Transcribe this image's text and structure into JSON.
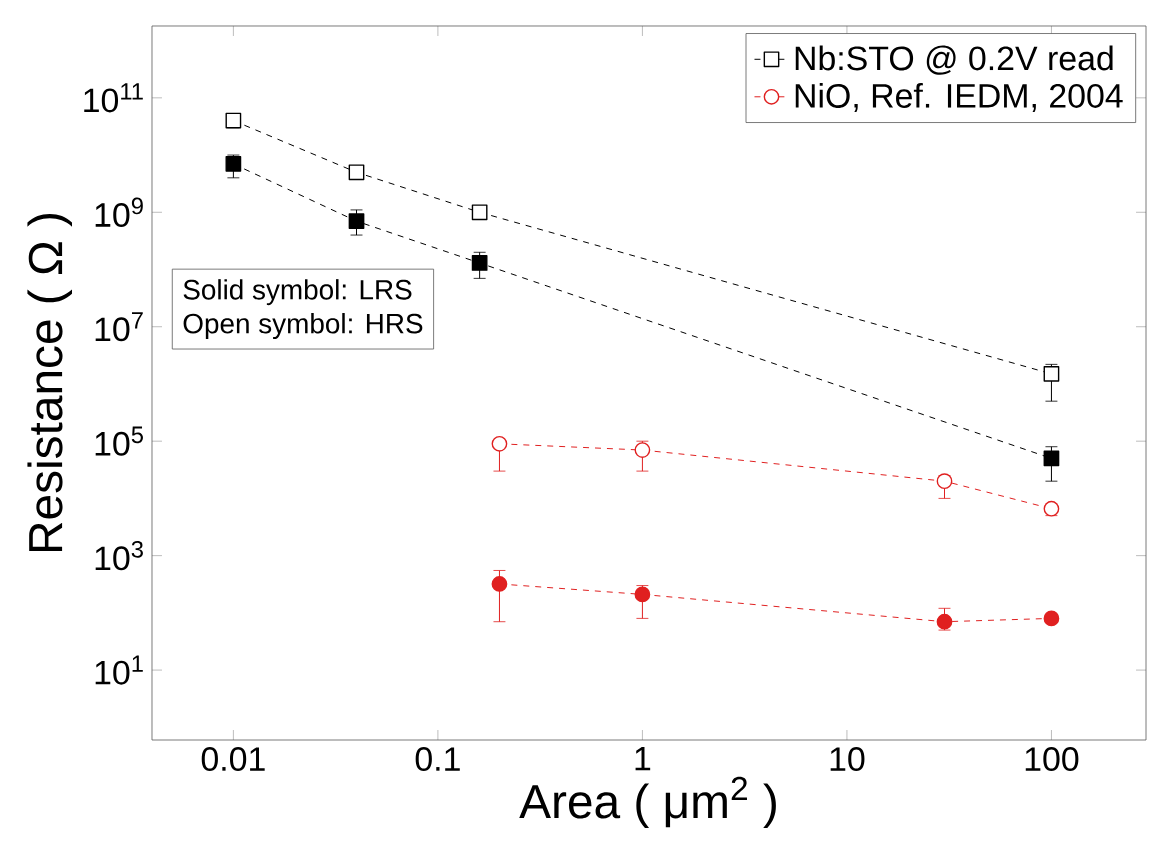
{
  "chart_data": {
    "type": "line",
    "xlabel": "Area ( μm$^{2}$ )",
    "ylabel": "Resistance ( Ω )",
    "log": "xy",
    "xlim": [
      0.004,
      290
    ],
    "ylim": [
      0.6,
      1800000000000.0
    ],
    "xticks": [
      0.01,
      0.1,
      1,
      10,
      100
    ],
    "yticks": [
      {
        "value": 10,
        "label": "10$^{1}$"
      },
      {
        "value": 1000,
        "label": "10$^{3}$"
      },
      {
        "value": 100000,
        "label": "10$^{5}$"
      },
      {
        "value": 10000000,
        "label": "10$^{7}$"
      },
      {
        "value": 1000000000,
        "label": "10$^{9}$"
      },
      {
        "value": 100000000000,
        "label": "10$^{11}$"
      }
    ],
    "grid": false,
    "legend": "top right",
    "line_style": "dashed",
    "annotations": [
      "Solid symbol: LRS",
      "Open symbol: HRS"
    ],
    "series": [
      {
        "name": "Nb:STO @ 0.2V read",
        "color": "#000000",
        "marker": "square",
        "x": [
          0.01,
          0.04,
          0.16,
          100
        ],
        "values": [
          40000000000.0,
          5000000000.0,
          1000000000.0,
          1500000.0
        ],
        "errors": [
          [
            30000000000.0,
            50000000000.0
          ],
          [
            4500000000.0,
            6000000000.0
          ],
          [
            800000000.0,
            1200000000.0
          ],
          [
            500000.0,
            2200000.0
          ]
        ]
      },
      {
        "name": "NiO, Ref. IEDM, 2004",
        "color": "#e02020",
        "marker": "circle",
        "x": [
          0.2,
          1,
          30,
          100
        ],
        "values": [
          90000.0,
          70000.0,
          20000.0,
          6600.0
        ],
        "errors": [
          [
            30000.0,
            100000.0
          ],
          [
            30000.0,
            100000.0
          ],
          [
            10000.0,
            25000.0
          ],
          [
            5000.0,
            8000.0
          ]
        ]
      },
      {
        "color": "#000000",
        "marker": "square",
        "x": [
          0.01,
          0.04,
          0.16,
          100
        ],
        "values": [
          7000000000.0,
          700000000.0,
          130000000.0,
          50000.0
        ],
        "errors": [
          [
            4000000000.0,
            10000000000.0
          ],
          [
            400000000.0,
            1100000000.0
          ],
          [
            70000000.0,
            200000000.0
          ],
          [
            20000.0,
            80000.0
          ]
        ]
      },
      {
        "color": "#e02020",
        "marker": "circle",
        "x": [
          0.2,
          1,
          30,
          100
        ],
        "values": [
          320,
          210,
          70,
          80
        ],
        "errors": [
          [
            70,
            550
          ],
          [
            80,
            300
          ],
          [
            50,
            120
          ],
          null
        ]
      }
    ]
  }
}
